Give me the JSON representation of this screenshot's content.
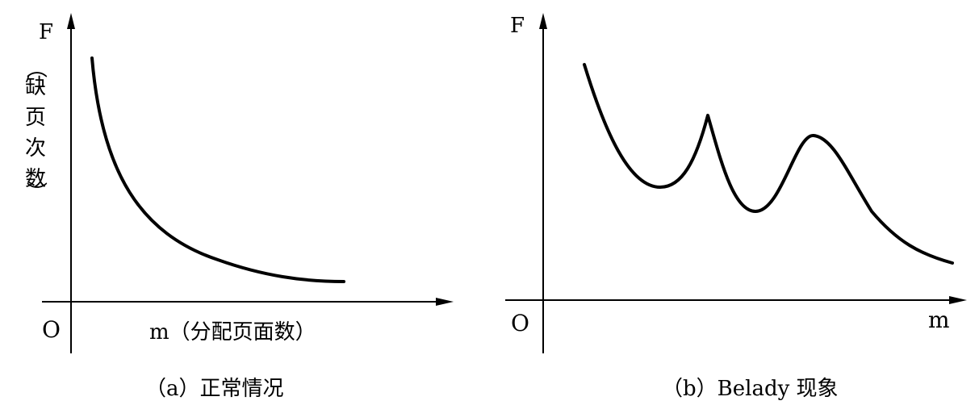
{
  "chart_data": [
    {
      "type": "line",
      "caption": "（a）正常情况",
      "origin_label": "O",
      "y_axis_label": "F",
      "y_axis_sublabel": [
        "（",
        "缺",
        "页",
        "次",
        "数",
        "）"
      ],
      "x_axis_label": "m（分配页面数）",
      "axis_ticks": "none",
      "grid": false,
      "legend": "none",
      "series": [
        {
          "values_note": "qualitative monotonic decreasing curve",
          "x": [
            1,
            2,
            3,
            4,
            5,
            6,
            7,
            8,
            9,
            10
          ],
          "y": [
            10,
            7.3,
            5.4,
            4.1,
            3.2,
            2.6,
            2.1,
            1.8,
            1.6,
            1.5
          ]
        }
      ]
    },
    {
      "type": "line",
      "caption": "（b）Belady 现象",
      "origin_label": "O",
      "y_axis_label": "F",
      "x_axis_label": "m",
      "axis_ticks": "none",
      "grid": false,
      "legend": "none",
      "series": [
        {
          "values_note": "non-monotonic curve with two local peaks",
          "x": [
            1,
            2,
            3,
            4,
            5,
            6,
            7,
            8,
            9,
            10
          ],
          "y": [
            9,
            6.2,
            5.8,
            8.3,
            4.8,
            4.4,
            7.4,
            5.6,
            3.6,
            1.6
          ]
        }
      ]
    }
  ]
}
